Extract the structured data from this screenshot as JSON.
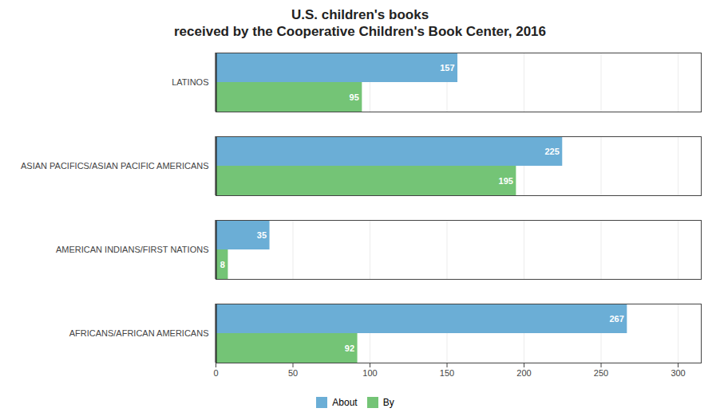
{
  "chart_data": {
    "type": "bar",
    "orientation": "horizontal",
    "title": "U.S. children's books\nreceived by the Cooperative Children's Book Center, 2016",
    "categories": [
      "AFRICANS/AFRICAN AMERICANS",
      "AMERICAN INDIANS/FIRST NATIONS",
      "ASIAN PACIFICS/ASIAN PACIFIC AMERICANS",
      "LATINOS"
    ],
    "series": [
      {
        "name": "About",
        "color": "#6baed6",
        "values": [
          267,
          35,
          225,
          157
        ]
      },
      {
        "name": "By",
        "color": "#74c476",
        "values": [
          92,
          8,
          195,
          95
        ]
      }
    ],
    "xlim": [
      0,
      315
    ],
    "xticks": [
      0,
      50,
      100,
      150,
      200,
      250,
      300
    ],
    "grid": true,
    "data_labels": true,
    "legend": "bottom"
  }
}
